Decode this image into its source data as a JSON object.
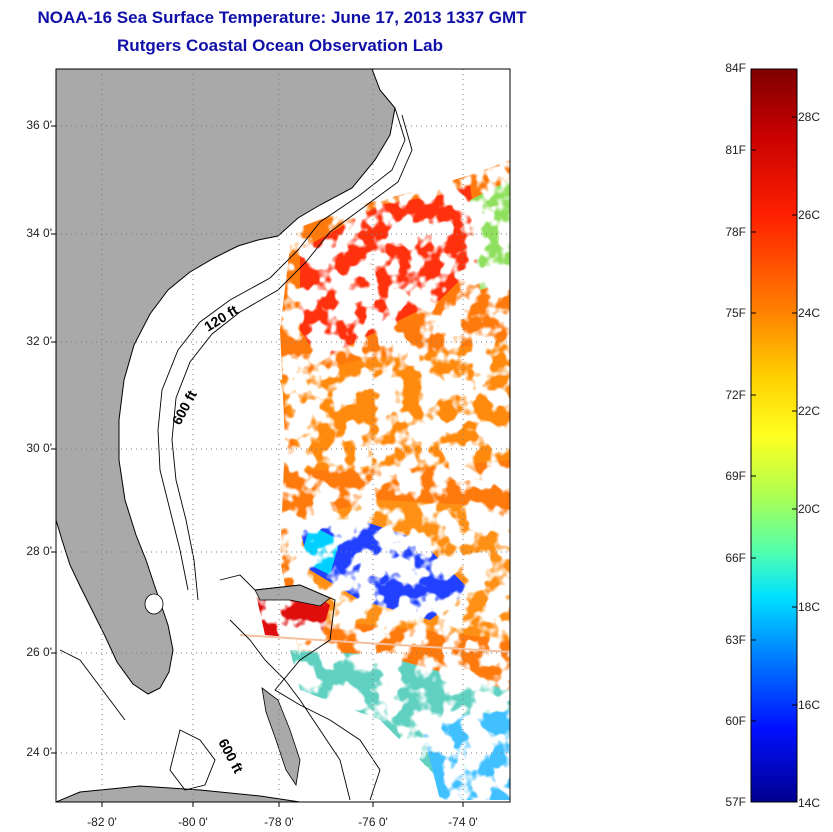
{
  "title": {
    "line1": "NOAA-16 Sea Surface Temperature:  June 17, 2013 1337 GMT",
    "line2": "Rutgers Coastal Ocean Observation Lab"
  },
  "map": {
    "lat_ticks": [
      "36 0'",
      "34 0'",
      "32 0'",
      "30 0'",
      "28 0'",
      "26 0'",
      "24 0'"
    ],
    "lon_ticks": [
      "-82 0'",
      "-80 0'",
      "-78 0'",
      "-76 0'",
      "-74 0'"
    ],
    "contour_labels": [
      "120 ft",
      "600 ft",
      "600 ft"
    ],
    "land_color": "#a9a9a9",
    "ocean_color": "#ffffff"
  },
  "colorbar": {
    "f_labels": [
      "84F",
      "81F",
      "78F",
      "75F",
      "72F",
      "69F",
      "66F",
      "63F",
      "60F",
      "57F"
    ],
    "c_labels": [
      "28C",
      "26C",
      "24C",
      "22C",
      "20C",
      "18C",
      "16C",
      "14C"
    ],
    "colormap": [
      "#7f0000",
      "#c80000",
      "#ff2000",
      "#ff8000",
      "#ffd000",
      "#ffff20",
      "#b0ff50",
      "#50ffb0",
      "#00e0ff",
      "#0080ff",
      "#0010ff",
      "#00008f"
    ]
  }
}
